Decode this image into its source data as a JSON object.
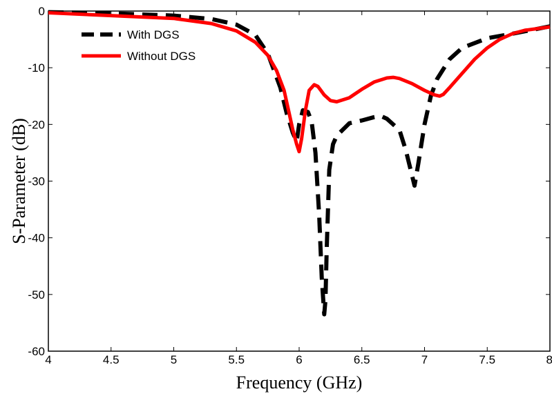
{
  "chart_data": {
    "type": "line",
    "title": "",
    "xlabel": "Frequency (GHz)",
    "ylabel": "S-Parameter (dB)",
    "xlim": [
      4,
      8
    ],
    "ylim": [
      -60,
      0
    ],
    "x_ticks": [
      4,
      4.5,
      5,
      5.5,
      6,
      6.5,
      7,
      7.5,
      8
    ],
    "x_tick_labels": [
      "4",
      "4.5",
      "5",
      "5.5",
      "6",
      "6.5",
      "7",
      "7.5",
      "8"
    ],
    "y_ticks": [
      0,
      -10,
      -20,
      -30,
      -40,
      -50,
      -60
    ],
    "y_tick_labels": [
      "0",
      "-10",
      "-20",
      "-30",
      "-40",
      "-50",
      "-60"
    ],
    "grid": false,
    "legend_position": "top-left",
    "series": [
      {
        "name": "With DGS",
        "color": "#000000",
        "style": "dashed",
        "x": [
          4.0,
          4.5,
          5.0,
          5.3,
          5.5,
          5.65,
          5.75,
          5.85,
          5.9,
          5.95,
          5.98,
          6.0,
          6.03,
          6.07,
          6.1,
          6.13,
          6.16,
          6.18,
          6.2,
          6.21,
          6.22,
          6.24,
          6.27,
          6.3,
          6.4,
          6.5,
          6.6,
          6.65,
          6.7,
          6.8,
          6.85,
          6.9,
          6.92,
          6.95,
          7.0,
          7.05,
          7.1,
          7.2,
          7.3,
          7.5,
          7.7,
          8.0
        ],
        "y": [
          -0.2,
          -0.4,
          -0.8,
          -1.4,
          -2.4,
          -4.2,
          -7.5,
          -13.5,
          -18.0,
          -21.5,
          -23.0,
          -20.0,
          -17.5,
          -17.8,
          -19.5,
          -25.0,
          -36.0,
          -47.0,
          -53.5,
          -51.0,
          -42.0,
          -28.0,
          -23.5,
          -22.0,
          -19.8,
          -19.3,
          -18.7,
          -18.5,
          -19.0,
          -21.0,
          -24.5,
          -29.0,
          -30.8,
          -27.0,
          -20.0,
          -15.0,
          -12.0,
          -8.5,
          -6.5,
          -4.8,
          -4.0,
          -2.7
        ]
      },
      {
        "name": "Without DGS",
        "color": "#ff0000",
        "style": "solid",
        "x": [
          4.0,
          4.5,
          5.0,
          5.3,
          5.5,
          5.65,
          5.75,
          5.82,
          5.88,
          5.92,
          5.95,
          5.98,
          6.0,
          6.02,
          6.05,
          6.08,
          6.12,
          6.15,
          6.2,
          6.25,
          6.3,
          6.4,
          6.5,
          6.6,
          6.7,
          6.75,
          6.8,
          6.9,
          7.0,
          7.08,
          7.12,
          7.15,
          7.2,
          7.3,
          7.4,
          7.5,
          7.6,
          7.7,
          7.8,
          8.0
        ],
        "y": [
          -0.3,
          -0.8,
          -1.3,
          -2.2,
          -3.5,
          -5.5,
          -7.8,
          -10.5,
          -14.0,
          -18.0,
          -21.0,
          -23.5,
          -24.8,
          -22.5,
          -17.5,
          -14.0,
          -13.0,
          -13.3,
          -14.8,
          -15.8,
          -16.0,
          -15.3,
          -13.8,
          -12.5,
          -11.8,
          -11.7,
          -11.9,
          -12.8,
          -14.0,
          -14.8,
          -15.0,
          -14.7,
          -13.5,
          -11.0,
          -8.5,
          -6.5,
          -5.0,
          -4.0,
          -3.4,
          -2.8
        ]
      }
    ]
  }
}
